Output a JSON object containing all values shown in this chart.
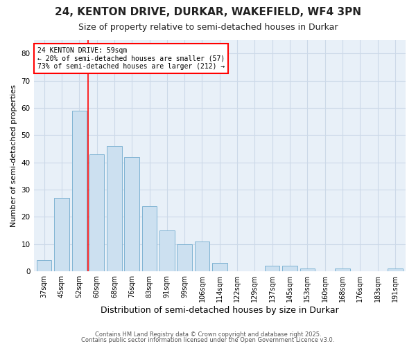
{
  "title1": "24, KENTON DRIVE, DURKAR, WAKEFIELD, WF4 3PN",
  "title2": "Size of property relative to semi-detached houses in Durkar",
  "xlabel": "Distribution of semi-detached houses by size in Durkar",
  "ylabel": "Number of semi-detached properties",
  "categories": [
    "37sqm",
    "45sqm",
    "52sqm",
    "60sqm",
    "68sqm",
    "76sqm",
    "83sqm",
    "91sqm",
    "99sqm",
    "106sqm",
    "114sqm",
    "122sqm",
    "129sqm",
    "137sqm",
    "145sqm",
    "153sqm",
    "160sqm",
    "168sqm",
    "176sqm",
    "183sqm",
    "191sqm"
  ],
  "values": [
    4,
    27,
    59,
    43,
    46,
    42,
    24,
    15,
    10,
    11,
    3,
    0,
    0,
    2,
    2,
    1,
    0,
    1,
    0,
    0,
    1
  ],
  "bar_color": "#cce0f0",
  "bar_edge_color": "#7fb3d3",
  "property_line_x": 2.5,
  "annotation_text": "24 KENTON DRIVE: 59sqm\n← 20% of semi-detached houses are smaller (57)\n73% of semi-detached houses are larger (212) →",
  "ylim": [
    0,
    85
  ],
  "yticks": [
    0,
    10,
    20,
    30,
    40,
    50,
    60,
    70,
    80
  ],
  "footnote1": "Contains HM Land Registry data © Crown copyright and database right 2025.",
  "footnote2": "Contains public sector information licensed under the Open Government Licence v3.0.",
  "grid_color": "#ccd9e8",
  "background_color": "#e8f0f8",
  "title1_fontsize": 11,
  "title2_fontsize": 9,
  "xlabel_fontsize": 9,
  "ylabel_fontsize": 8,
  "annot_fontsize": 7,
  "tick_fontsize": 7,
  "ytick_fontsize": 7.5
}
